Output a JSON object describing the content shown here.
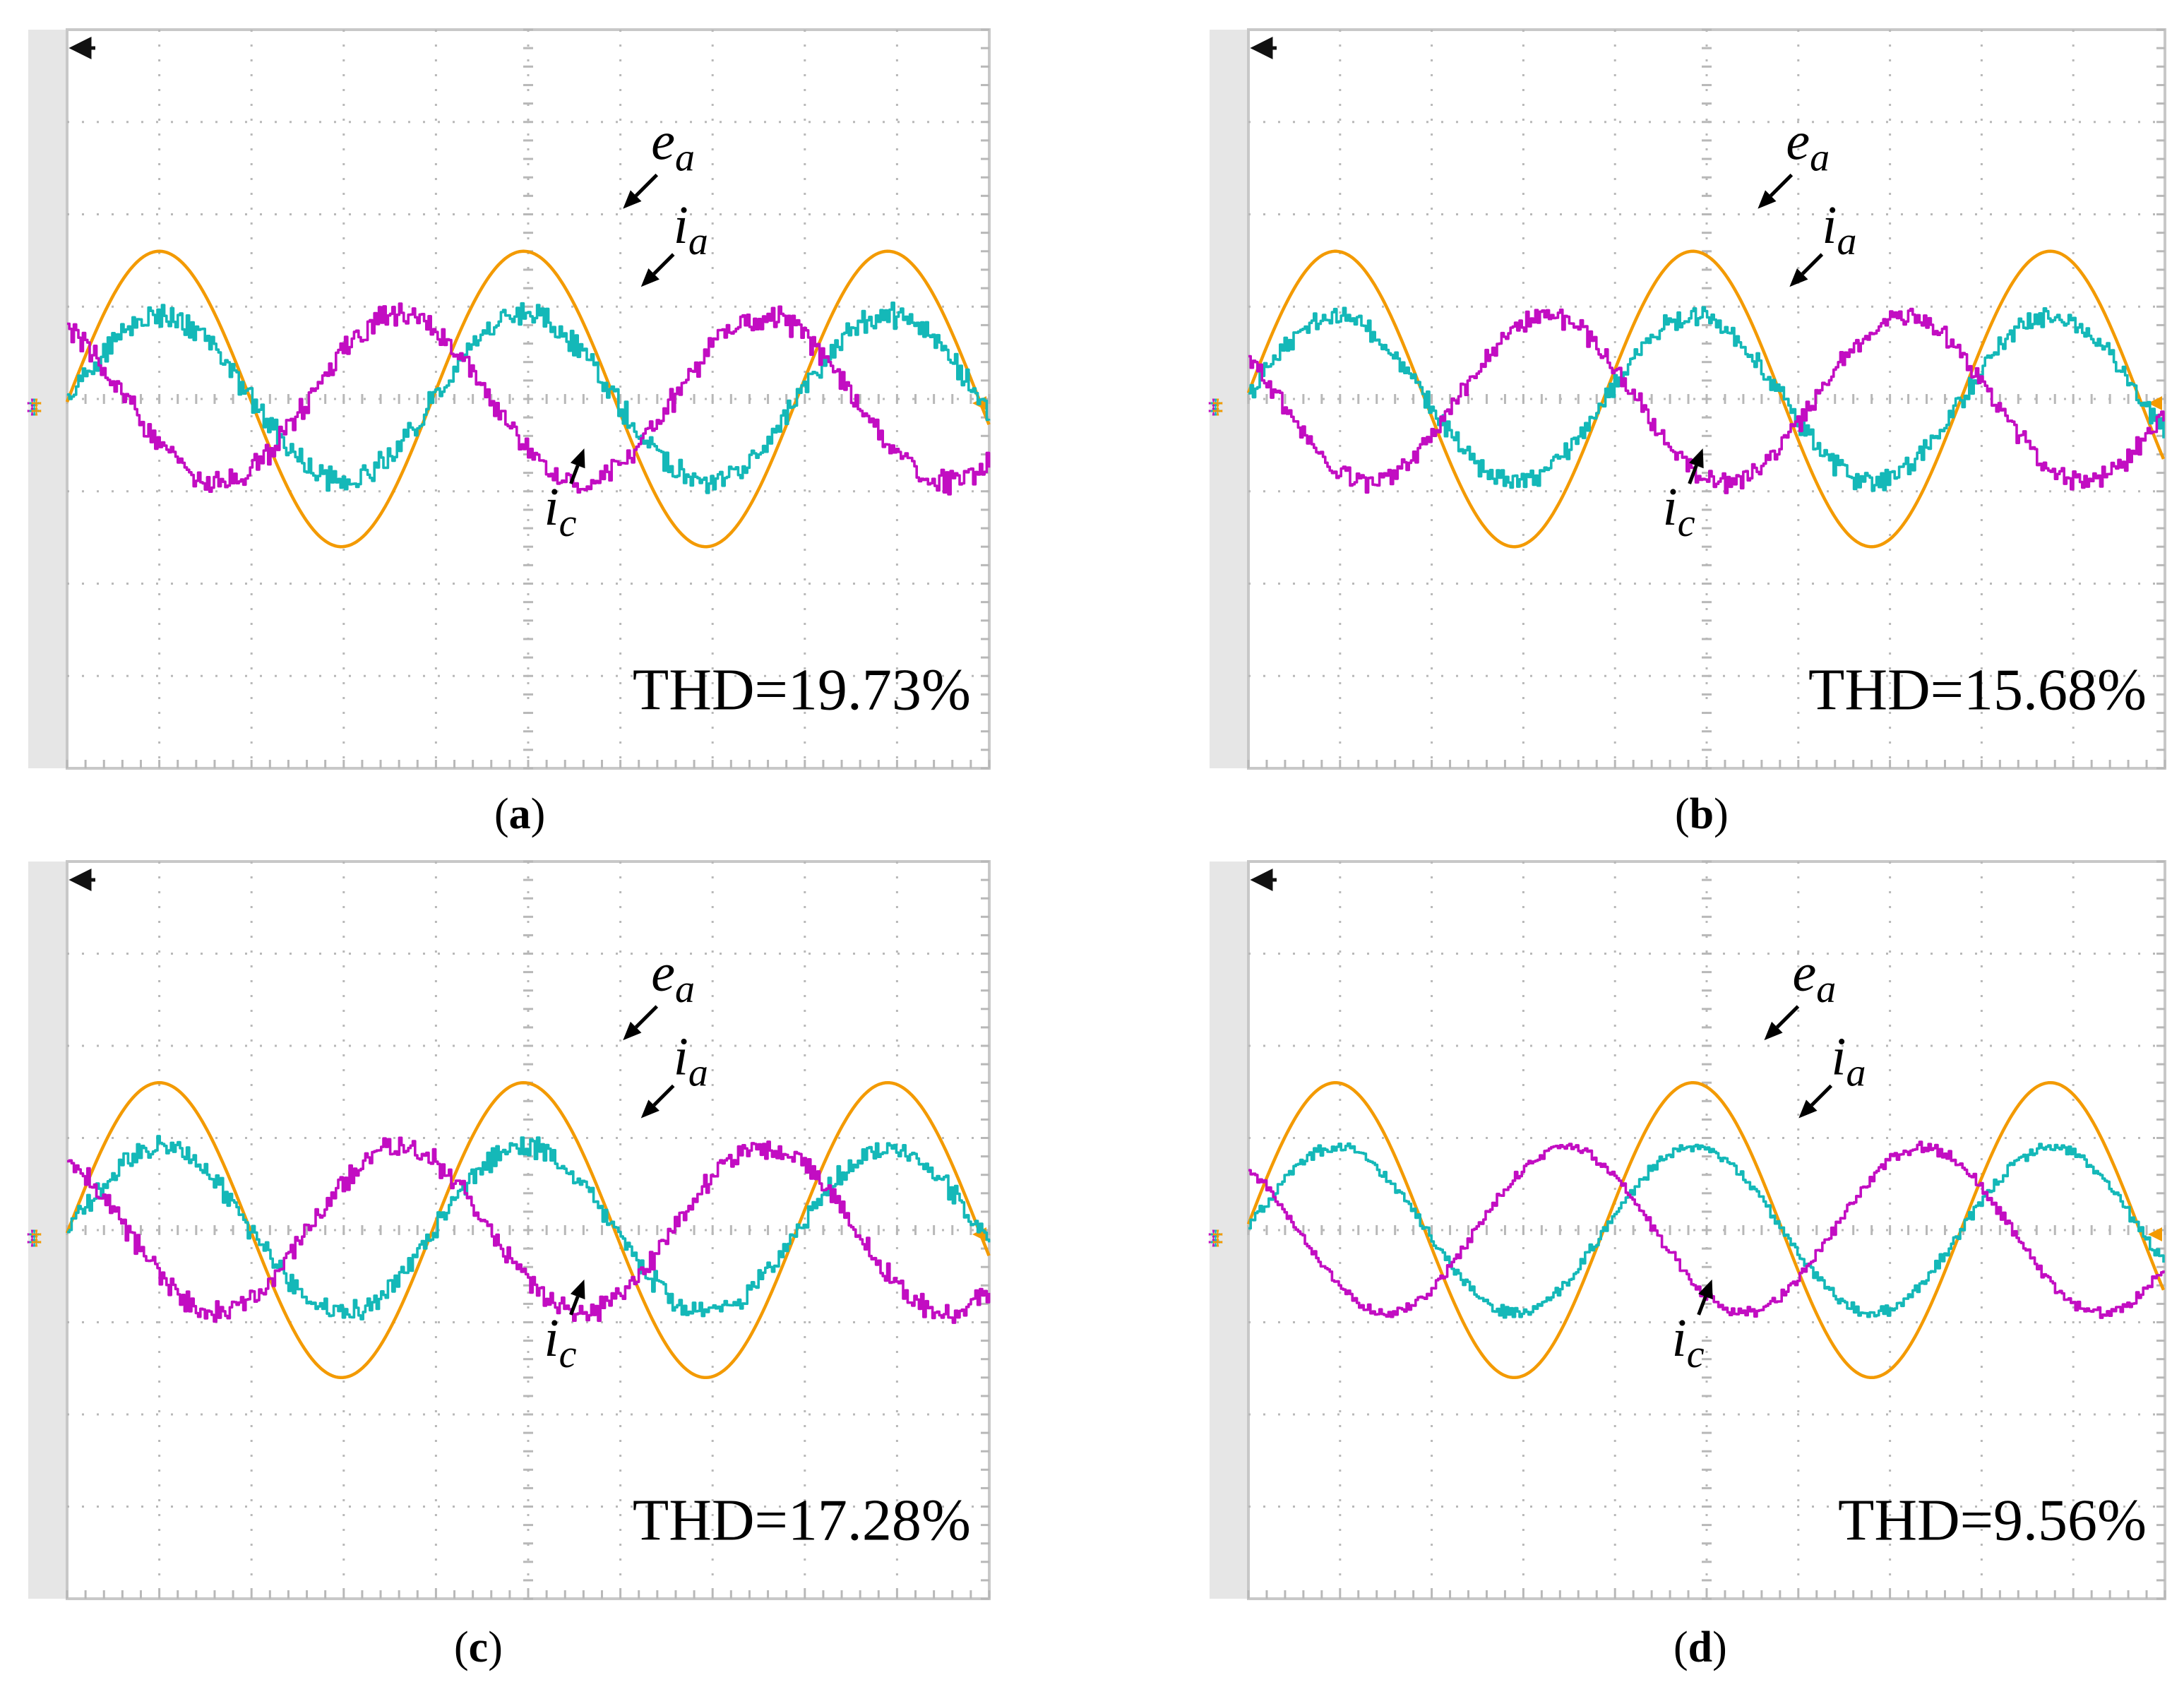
{
  "colors": {
    "e_a": "#F39A00",
    "i_a": "#14B8B8",
    "i_c": "#C20DC2",
    "grid": "#B8B8B8",
    "frame": "#C8C8C8",
    "left_strip": "#E6E6E6",
    "marker": "#111111"
  },
  "trace_labels": {
    "e_a": {
      "base": "e",
      "sub": "a"
    },
    "i_a": {
      "base": "i",
      "sub": "a"
    },
    "i_c": {
      "base": "i",
      "sub": "c"
    }
  },
  "chart_data": [
    {
      "id": "a",
      "type": "line",
      "label": "a",
      "annotation": "THD=19.73%",
      "x_divisions": 10,
      "y_divisions": 8,
      "xlim": [
        0,
        10
      ],
      "ylim": [
        -4,
        4
      ],
      "series": [
        {
          "name": "e_a",
          "amplitude_div": 1.6,
          "peak_x_div": 1.0,
          "period_div": 3.95,
          "noise_div": 0.0
        },
        {
          "name": "i_a",
          "amplitude_div": 0.9,
          "peak_x_div": 1.0,
          "period_div": 3.95,
          "noise_div": 0.16
        },
        {
          "name": "i_c",
          "amplitude_div": 0.9,
          "peak_x_div": 3.6,
          "period_div": 3.95,
          "noise_div": 0.16
        }
      ]
    },
    {
      "id": "b",
      "type": "line",
      "label": "b",
      "annotation": "THD=15.68%",
      "x_divisions": 10,
      "y_divisions": 8,
      "xlim": [
        0,
        10
      ],
      "ylim": [
        -4,
        4
      ],
      "series": [
        {
          "name": "e_a",
          "amplitude_div": 1.6,
          "peak_x_div": 0.95,
          "period_div": 3.9,
          "noise_div": 0.0
        },
        {
          "name": "i_a",
          "amplitude_div": 0.9,
          "peak_x_div": 0.95,
          "period_div": 3.9,
          "noise_div": 0.13
        },
        {
          "name": "i_c",
          "amplitude_div": 0.9,
          "peak_x_div": 3.25,
          "period_div": 3.9,
          "noise_div": 0.13
        }
      ]
    },
    {
      "id": "c",
      "type": "line",
      "label": "c",
      "annotation": "THD=17.28%",
      "x_divisions": 10,
      "y_divisions": 8,
      "xlim": [
        0,
        10
      ],
      "ylim": [
        -4,
        4
      ],
      "series": [
        {
          "name": "e_a",
          "amplitude_div": 1.6,
          "peak_x_div": 1.0,
          "period_div": 3.95,
          "noise_div": 0.0
        },
        {
          "name": "i_a",
          "amplitude_div": 0.9,
          "peak_x_div": 1.0,
          "period_div": 3.95,
          "noise_div": 0.14
        },
        {
          "name": "i_c",
          "amplitude_div": 0.9,
          "peak_x_div": 3.6,
          "period_div": 3.95,
          "noise_div": 0.14
        }
      ]
    },
    {
      "id": "d",
      "type": "line",
      "label": "d",
      "annotation": "THD=9.56%",
      "x_divisions": 10,
      "y_divisions": 8,
      "xlim": [
        0,
        10
      ],
      "ylim": [
        -4,
        4
      ],
      "series": [
        {
          "name": "e_a",
          "amplitude_div": 1.6,
          "peak_x_div": 0.95,
          "period_div": 3.9,
          "noise_div": 0.0
        },
        {
          "name": "i_a",
          "amplitude_div": 0.9,
          "peak_x_div": 0.95,
          "period_div": 3.9,
          "noise_div": 0.07
        },
        {
          "name": "i_c",
          "amplitude_div": 0.9,
          "peak_x_div": 3.45,
          "period_div": 3.9,
          "noise_div": 0.07
        }
      ]
    }
  ]
}
